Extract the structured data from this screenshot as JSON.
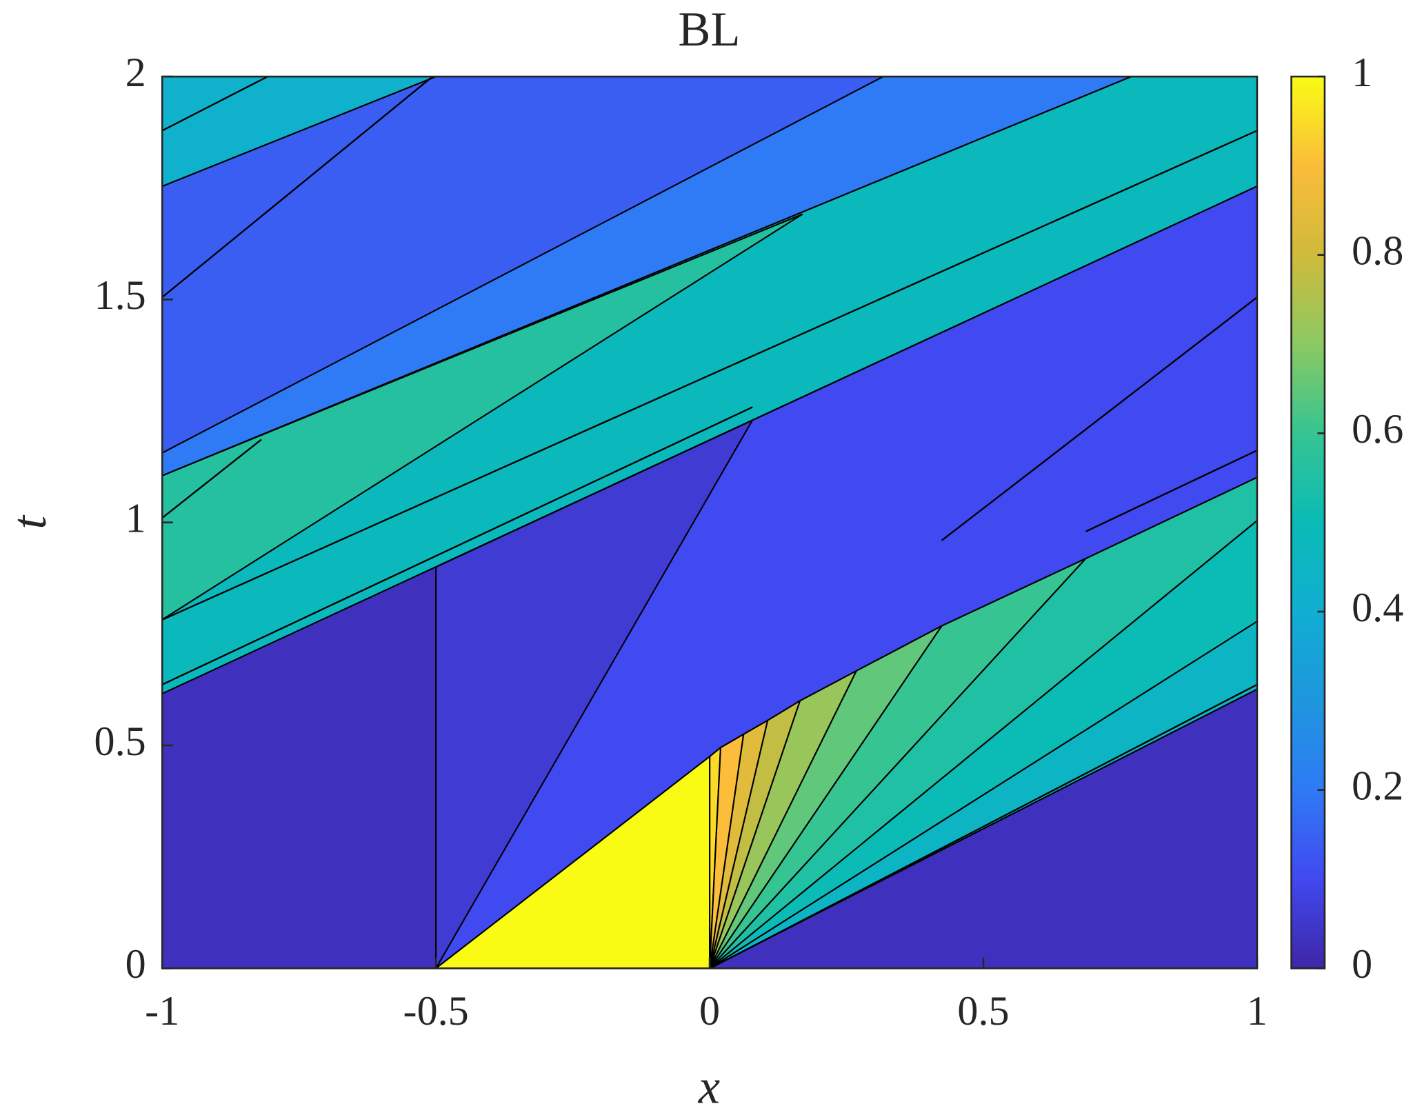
{
  "chart_data": {
    "type": "contour",
    "title": "BL",
    "xlabel": "x",
    "ylabel": "t",
    "xlim": [
      -1,
      1
    ],
    "ylim": [
      0,
      2
    ],
    "xticks": [
      -1,
      -0.5,
      0,
      0.5,
      1
    ],
    "yticks": [
      0,
      0.5,
      1,
      1.5,
      2
    ],
    "colormap": "parula",
    "clim": [
      0,
      1
    ],
    "cticks": [
      0,
      0.2,
      0.4,
      0.6,
      0.8,
      1
    ],
    "regions": [
      {
        "value": 0.03,
        "points": [
          [
            -1,
            0
          ],
          [
            1,
            0
          ],
          [
            1,
            2
          ],
          [
            -1,
            2
          ]
        ]
      },
      {
        "value": 0.48,
        "points": [
          [
            -1,
            0.616
          ],
          [
            1,
            1.754
          ],
          [
            1,
            2
          ],
          [
            0.77,
            2
          ],
          [
            -1,
            1.105
          ]
        ]
      },
      {
        "value": 0.56,
        "points": [
          [
            -1,
            1.105
          ],
          [
            0.169,
            1.691
          ],
          [
            -1,
            0.782
          ]
        ]
      },
      {
        "value": 0.14,
        "points": [
          [
            -1,
            1.105
          ],
          [
            0.77,
            2
          ],
          [
            -0.5,
            2
          ],
          [
            -1,
            1.754
          ]
        ]
      },
      {
        "value": 0.2,
        "points": [
          [
            -1,
            1.105
          ],
          [
            0.77,
            2
          ],
          [
            0.317,
            2
          ],
          [
            -1,
            1.156
          ]
        ]
      },
      {
        "value": 0.42,
        "points": [
          [
            -1,
            1.754
          ],
          [
            -0.5,
            2
          ],
          [
            -1,
            2
          ]
        ]
      },
      {
        "value": 0.1,
        "points": [
          [
            -0.5,
            0.9
          ],
          [
            1,
            1.754
          ],
          [
            1,
            1.101
          ],
          [
            0.687,
            0.919
          ],
          [
            0.424,
            0.768
          ],
          [
            0.268,
            0.667
          ],
          [
            0.165,
            0.6
          ],
          [
            0.106,
            0.556
          ],
          [
            0.062,
            0.525
          ],
          [
            0.02,
            0.495
          ],
          [
            0,
            0.475
          ],
          [
            -0.5,
            0
          ]
        ]
      },
      {
        "value": 0.06,
        "points": [
          [
            -0.5,
            0.9
          ],
          [
            0.078,
            1.229
          ],
          [
            -0.5,
            0
          ]
        ]
      },
      {
        "value": 0.95,
        "points": [
          [
            0,
            0
          ],
          [
            0,
            0.475
          ],
          [
            0.02,
            0.495
          ]
        ]
      },
      {
        "value": 0.9,
        "points": [
          [
            0,
            0
          ],
          [
            0.02,
            0.495
          ],
          [
            0.062,
            0.525
          ]
        ]
      },
      {
        "value": 0.84,
        "points": [
          [
            0,
            0
          ],
          [
            0.062,
            0.525
          ],
          [
            0.106,
            0.556
          ]
        ]
      },
      {
        "value": 0.78,
        "points": [
          [
            0,
            0
          ],
          [
            0.106,
            0.556
          ],
          [
            0.165,
            0.6
          ]
        ]
      },
      {
        "value": 0.72,
        "points": [
          [
            0,
            0
          ],
          [
            0.165,
            0.6
          ],
          [
            0.268,
            0.667
          ]
        ]
      },
      {
        "value": 0.65,
        "points": [
          [
            0,
            0
          ],
          [
            0.268,
            0.667
          ],
          [
            0.424,
            0.768
          ]
        ]
      },
      {
        "value": 0.6,
        "points": [
          [
            0,
            0
          ],
          [
            0.424,
            0.768
          ],
          [
            0.687,
            0.919
          ]
        ]
      },
      {
        "value": 0.55,
        "points": [
          [
            0,
            0
          ],
          [
            0.687,
            0.919
          ],
          [
            1,
            1.101
          ],
          [
            1,
            1.004
          ]
        ]
      },
      {
        "value": 0.5,
        "points": [
          [
            0,
            0
          ],
          [
            1,
            1.004
          ],
          [
            1,
            0.778
          ]
        ]
      },
      {
        "value": 0.45,
        "points": [
          [
            0,
            0
          ],
          [
            1,
            0.778
          ],
          [
            1,
            0.626
          ]
        ]
      },
      {
        "value": 1,
        "points": [
          [
            -0.5,
            0
          ],
          [
            0,
            0
          ],
          [
            0,
            0.475
          ]
        ]
      }
    ]
  }
}
